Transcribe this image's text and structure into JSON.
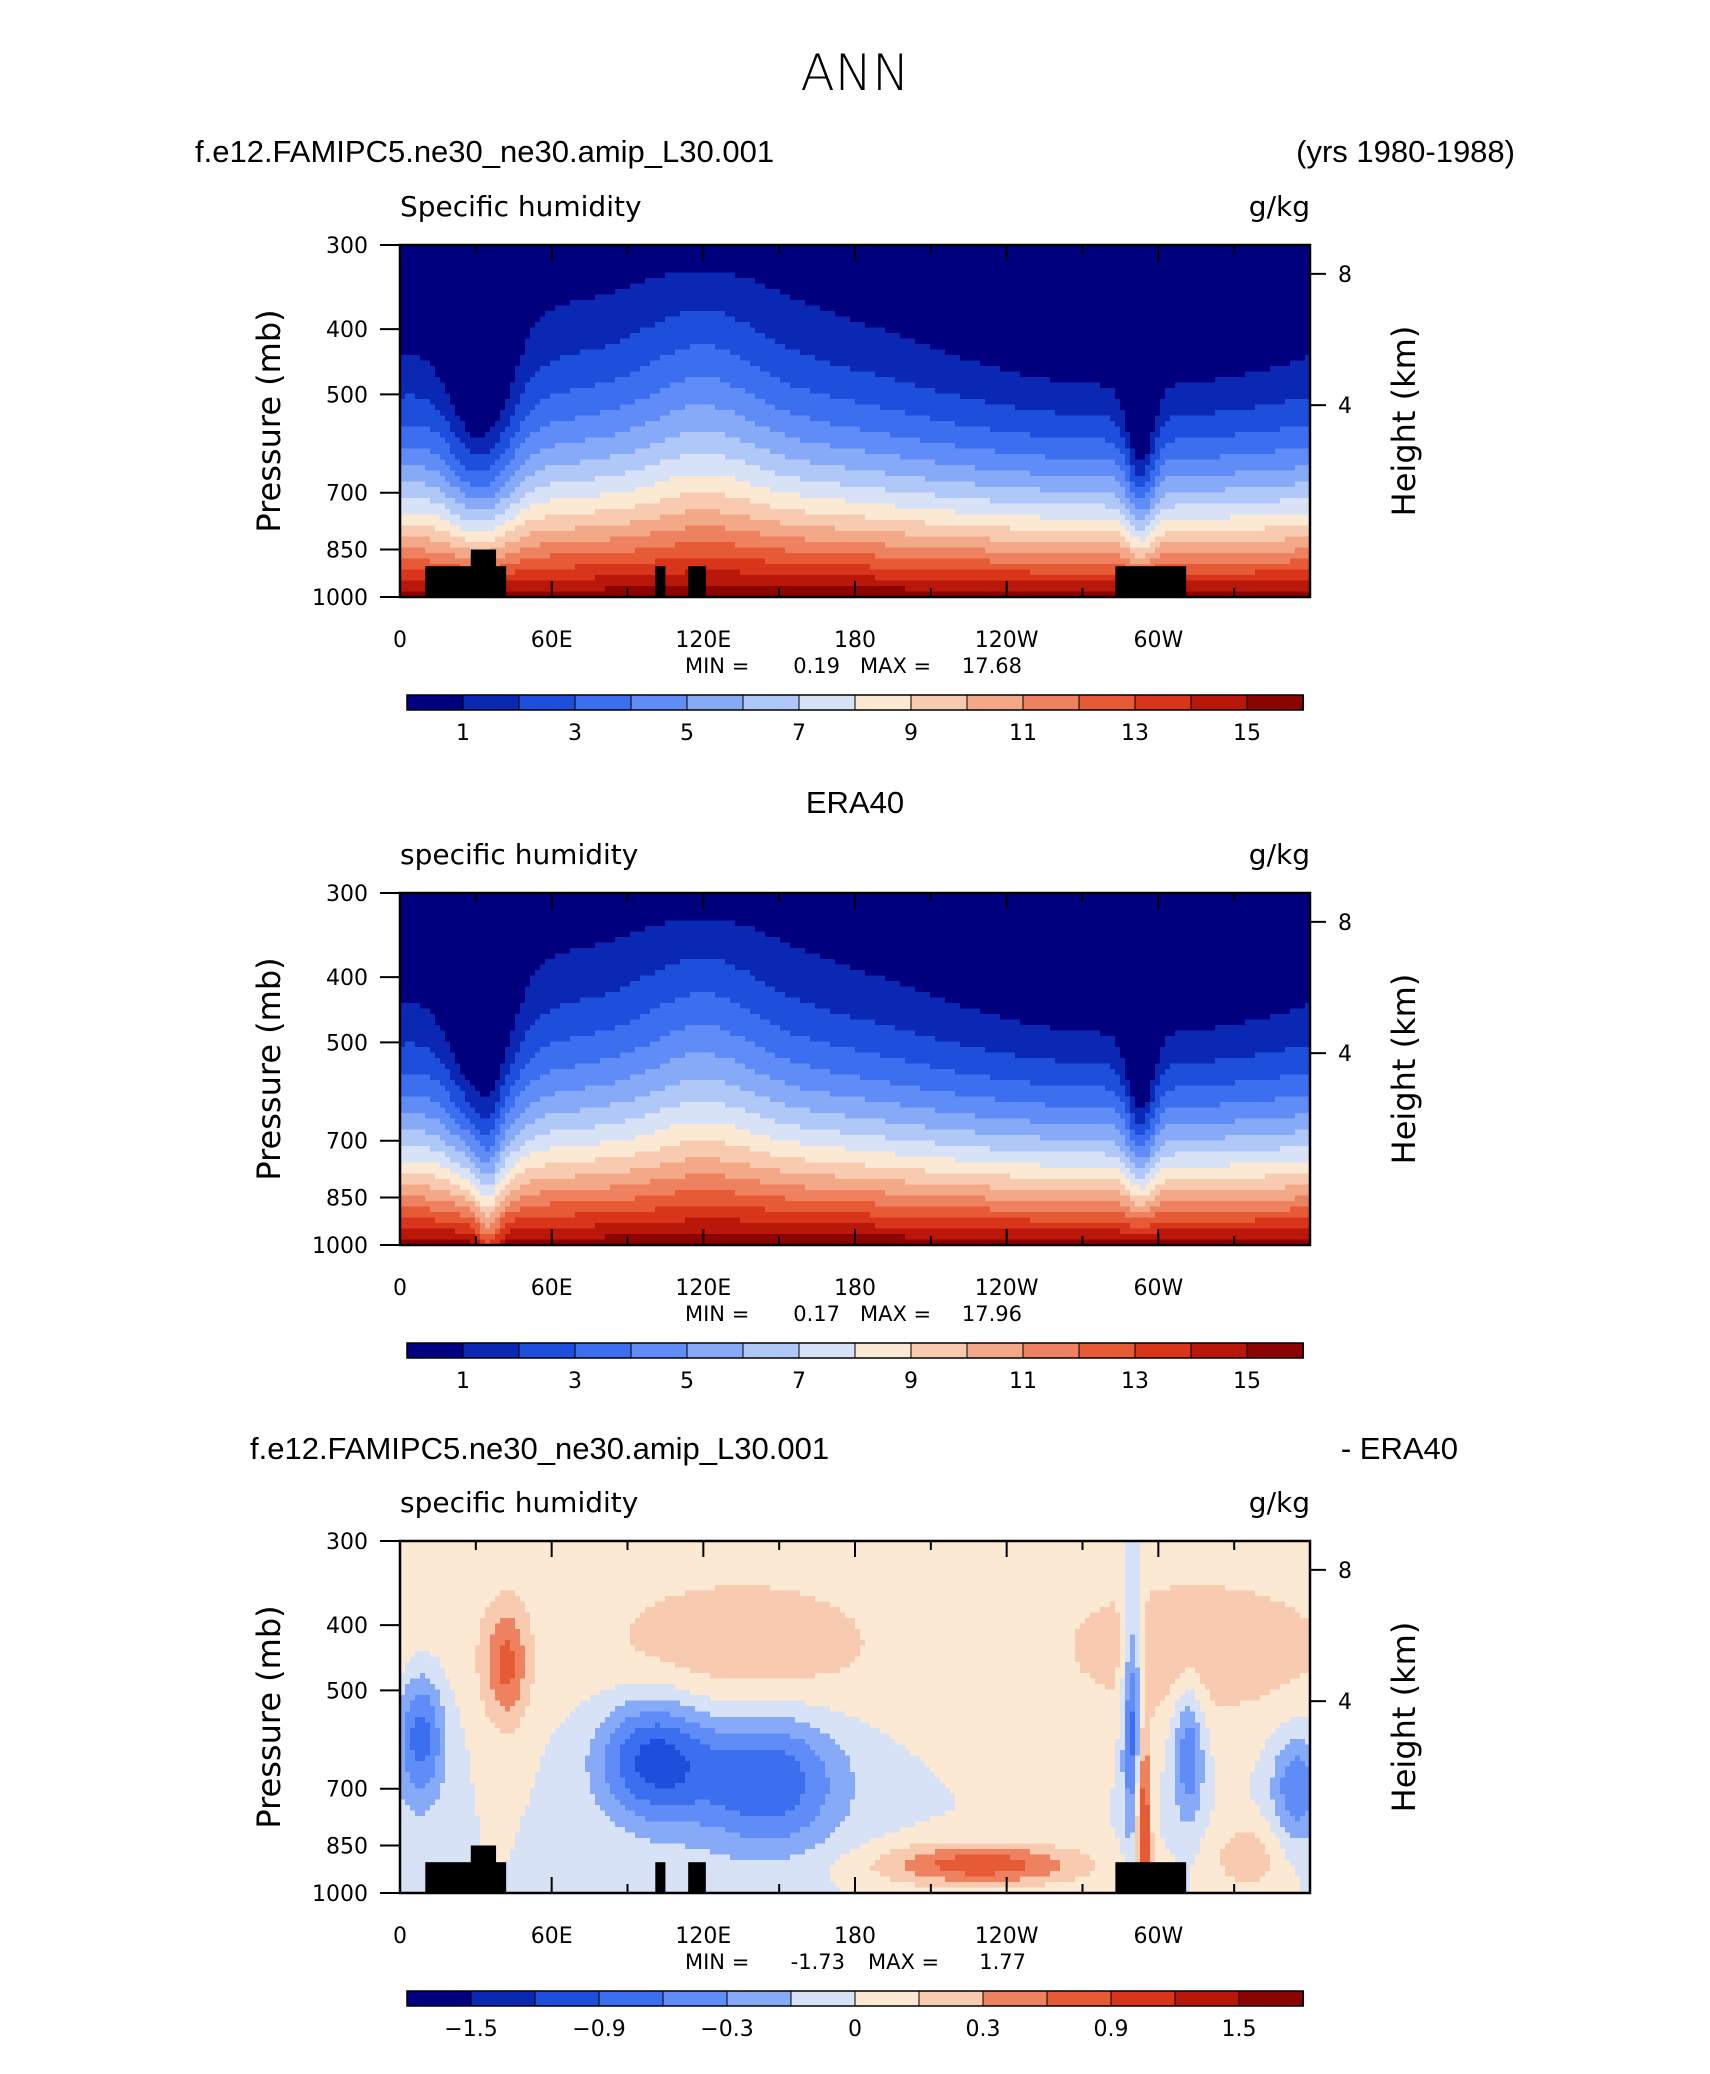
{
  "figure": {
    "title": "ANN",
    "colors": {
      "fill_levels": [
        "#00007f",
        "#0a28b4",
        "#1e4fdc",
        "#3c6ef0",
        "#5f8cf6",
        "#87aaf8",
        "#b0c8f8",
        "#d7e2f6",
        "#fce9d4",
        "#f8cbb0",
        "#f3a888",
        "#ee8260",
        "#e75a36",
        "#d9351a",
        "#b8170a",
        "#8c0402"
      ]
    }
  },
  "panels": [
    {
      "header_left": "f.e12.FAMIPC5.ne30_ne30.amip_L30.001",
      "header_right": "(yrs 1980-1988)",
      "header_center": "",
      "subtitle_left": "Specific humidity",
      "subtitle_right": "g/kg",
      "stats": {
        "min_label": "MIN =",
        "min": "0.19",
        "max_label": "MAX =",
        "max": "17.68"
      },
      "cbar_labels": [
        "1",
        "3",
        "5",
        "7",
        "9",
        "11",
        "13",
        "15"
      ],
      "kind": "abs",
      "topo": true
    },
    {
      "header_left": "",
      "header_right": "",
      "header_center": "ERA40",
      "subtitle_left": "specific humidity",
      "subtitle_right": "g/kg",
      "stats": {
        "min_label": "MIN =",
        "min": "0.17",
        "max_label": "MAX =",
        "max": "17.96"
      },
      "cbar_labels": [
        "1",
        "3",
        "5",
        "7",
        "9",
        "11",
        "13",
        "15"
      ],
      "kind": "abs",
      "topo": false
    },
    {
      "header_left": "f.e12.FAMIPC5.ne30_ne30.amip_L30.001",
      "header_right": "- ERA40",
      "header_center": "",
      "subtitle_left": "specific humidity",
      "subtitle_right": "g/kg",
      "stats": {
        "min_label": "MIN =",
        "min": "-1.73",
        "max_label": "MAX =",
        "max": "1.77"
      },
      "cbar_labels": [
        "-1.5",
        "-0.9",
        "-0.3",
        "0",
        "0.3",
        "0.9",
        "1.5"
      ],
      "kind": "diff",
      "topo": true
    }
  ],
  "chart_data": {
    "type": "heatmap",
    "title": "ANN",
    "xlabel": "",
    "ylabel": "Pressure (mb)",
    "ylabel_right": "Height (km)",
    "x_ticks": [
      "0",
      "60E",
      "120E",
      "180",
      "120W",
      "60W"
    ],
    "y_ticks": [
      "300",
      "400",
      "500",
      "700",
      "850",
      "1000"
    ],
    "y_right_ticks": [
      "8",
      "4"
    ],
    "xlim": [
      0,
      360
    ],
    "ylim": [
      1000,
      300
    ],
    "y_scale": "log",
    "abs_levels": [
      1,
      2,
      3,
      4,
      5,
      6,
      7,
      8,
      9,
      10,
      11,
      12,
      13,
      14,
      15
    ],
    "diff_levels": [
      -1.8,
      -1.5,
      -1.2,
      -0.9,
      -0.6,
      -0.3,
      0,
      0.3,
      0.6,
      0.9,
      1.2,
      1.5,
      1.8
    ],
    "panels": [
      {
        "name": "f.e12.FAMIPC5.ne30_ne30.amip_L30.001",
        "units": "g/kg",
        "min": 0.19,
        "max": 17.68
      },
      {
        "name": "ERA40",
        "units": "g/kg",
        "min": 0.17,
        "max": 17.96
      },
      {
        "name": "f.e12.FAMIPC5.ne30_ne30.amip_L30.001 - ERA40",
        "units": "g/kg",
        "min": -1.73,
        "max": 1.77
      }
    ]
  }
}
